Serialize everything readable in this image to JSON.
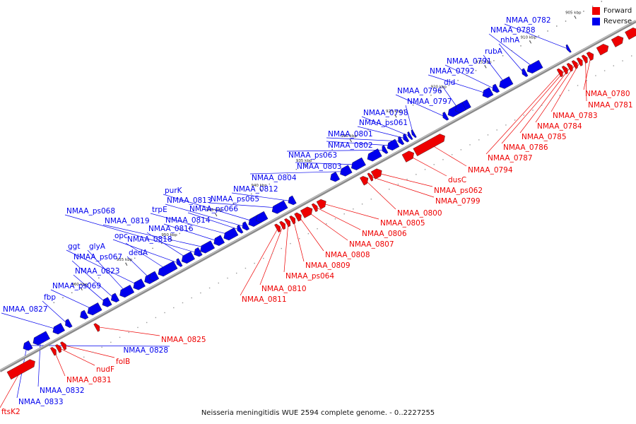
{
  "caption": "Neisseria meningitidis WUE 2594 complete genome. - 0..2227255",
  "legend": [
    {
      "label": "Forward",
      "color": "#ee0000"
    },
    {
      "label": "Reverse",
      "color": "#0000ee"
    }
  ],
  "colors": {
    "forward": "#ee0000",
    "reverse": "#0000ee",
    "backbone": "#999999"
  },
  "chart_data": {
    "type": "genome-map",
    "region_kbp": [
      900,
      963
    ],
    "ticks": [
      "905 kbp",
      "910 kbp",
      "915 kbp",
      "920 kbp",
      "925 kbp",
      "930 kbp",
      "935 kbp",
      "940 kbp",
      "945 kbp",
      "950 kbp",
      "955 kbp",
      "960 kbp"
    ],
    "forward_genes": [
      "NMAA_0780",
      "NMAA_0781",
      "NMAA_0783",
      "NMAA_0784",
      "NMAA_0785",
      "NMAA_0786",
      "NMAA_0787",
      "NMAA_0794",
      "dusC",
      "NMAA_ps062",
      "NMAA_0799",
      "NMAA_0800",
      "NMAA_0805",
      "NMAA_0806",
      "NMAA_0807",
      "NMAA_0808",
      "NMAA_0809",
      "NMAA_ps064",
      "NMAA_0810",
      "NMAA_0811",
      "NMAA_0825",
      "folB",
      "nudF",
      "NMAA_0831",
      "ftsK2"
    ],
    "reverse_genes": [
      "NMAA_0782",
      "NMAA_0788",
      "nhhA",
      "rubA",
      "NMAA_0791",
      "NMAA_0792",
      "dld",
      "NMAA_0796",
      "NMAA_0797",
      "NMAA_0798",
      "NMAA_ps061",
      "NMAA_0801",
      "NMAA_0802",
      "NMAA_ps063",
      "NMAA_0803",
      "NMAA_0804",
      "NMAA_0812",
      "NMAA_ps065",
      "purK",
      "NMAA_0813",
      "NMAA_ps066",
      "trpE",
      "NMAA_0814",
      "NMAA_ps068",
      "NMAA_0819",
      "NMAA_0816",
      "opc",
      "NMAA_0818",
      "ggt",
      "glyA",
      "dedA",
      "NMAA_ps067",
      "NMAA_0823",
      "NMAA_ps069",
      "fbp",
      "NMAA_0827",
      "NMAA_0828",
      "NMAA_0832",
      "NMAA_0833"
    ]
  }
}
